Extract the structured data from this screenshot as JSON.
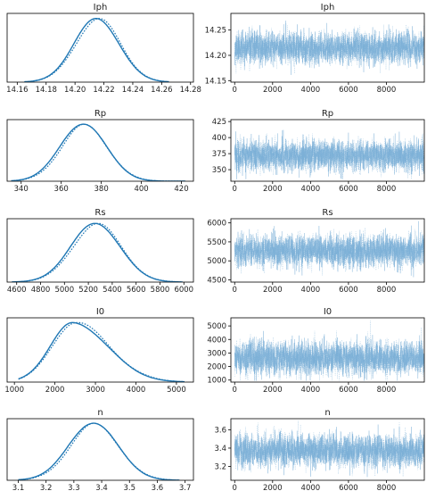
{
  "colors": {
    "kde": "#1f77b4",
    "trace": "#7bafd6",
    "axis": "#000000"
  },
  "chart_data": [
    {
      "type": "line",
      "title": "Iph",
      "xlim": [
        14.153,
        14.282
      ],
      "ylim": [
        0,
        1.08
      ],
      "xticks": [
        14.16,
        14.18,
        14.2,
        14.22,
        14.24,
        14.26,
        14.28
      ],
      "xtick_labels": [
        "14.16",
        "14.18",
        "14.20",
        "14.22",
        "14.24",
        "14.26",
        "14.28"
      ],
      "kde": {
        "mean": 14.215,
        "sd": 0.0155,
        "left": 14.165,
        "right": 14.265
      },
      "series": [
        {
          "x": [
            14.165,
            14.175,
            14.185,
            14.19,
            14.195,
            14.2,
            14.205,
            14.21,
            14.215,
            14.22,
            14.225,
            14.23,
            14.235,
            14.24,
            14.245,
            14.25,
            14.255,
            14.265
          ],
          "values": [
            0.006,
            0.04,
            0.1,
            0.2,
            0.38,
            0.6,
            0.82,
            0.96,
            1.0,
            0.96,
            0.82,
            0.6,
            0.4,
            0.22,
            0.1,
            0.04,
            0.015,
            0.003
          ]
        }
      ]
    },
    {
      "type": "line",
      "title": "Iph",
      "xlim": [
        -200,
        10000
      ],
      "ylim": [
        14.147,
        14.283
      ],
      "xticks": [
        0,
        2000,
        4000,
        6000,
        8000
      ],
      "xtick_labels": [
        "0",
        "2000",
        "4000",
        "6000",
        "8000"
      ],
      "yticks": [
        14.15,
        14.2,
        14.25
      ],
      "ytick_labels": [
        "14.15",
        "14.20",
        "14.25"
      ],
      "trace": {
        "n": 10000,
        "mean": 14.215,
        "sd": 0.0155,
        "min": 14.147,
        "max": 14.283,
        "seed": 11
      }
    },
    {
      "type": "line",
      "title": "Rp",
      "xlim": [
        333,
        426
      ],
      "ylim": [
        0,
        1.08
      ],
      "xticks": [
        340,
        360,
        380,
        400,
        420
      ],
      "xtick_labels": [
        "340",
        "360",
        "380",
        "400",
        "420"
      ],
      "kde": {
        "mean": 371,
        "sd": 11.5,
        "left": 335,
        "right": 422
      },
      "series": [
        {
          "x": [
            335,
            345,
            350,
            355,
            360,
            365,
            370,
            375,
            380,
            385,
            390,
            395,
            400,
            410,
            422
          ],
          "values": [
            0.01,
            0.08,
            0.2,
            0.42,
            0.72,
            0.94,
            1.0,
            0.9,
            0.7,
            0.46,
            0.28,
            0.14,
            0.07,
            0.015,
            0.002
          ]
        }
      ]
    },
    {
      "type": "line",
      "title": "Rp",
      "xlim": [
        -200,
        10000
      ],
      "ylim": [
        332,
        428
      ],
      "xticks": [
        0,
        2000,
        4000,
        6000,
        8000
      ],
      "xtick_labels": [
        "0",
        "2000",
        "4000",
        "6000",
        "8000"
      ],
      "yticks": [
        350,
        375,
        400,
        425
      ],
      "ytick_labels": [
        "350",
        "375",
        "400",
        "425"
      ],
      "trace": {
        "n": 10000,
        "mean": 372,
        "sd": 12,
        "min": 335,
        "max": 425,
        "seed": 22
      }
    },
    {
      "type": "line",
      "title": "Rs",
      "xlim": [
        4520,
        6080
      ],
      "ylim": [
        0,
        1.08
      ],
      "xticks": [
        4600,
        4800,
        5000,
        5200,
        5400,
        5600,
        5800,
        6000
      ],
      "xtick_labels": [
        "4600",
        "4800",
        "5000",
        "5200",
        "5400",
        "5600",
        "5800",
        "6000"
      ],
      "kde": {
        "mean": 5260,
        "sd": 205,
        "left": 4560,
        "right": 5990
      },
      "series": [
        {
          "x": [
            4560,
            4700,
            4800,
            4900,
            5000,
            5100,
            5200,
            5260,
            5300,
            5400,
            5500,
            5600,
            5700,
            5800,
            5990
          ],
          "values": [
            0.005,
            0.03,
            0.08,
            0.22,
            0.44,
            0.72,
            0.94,
            1.0,
            0.98,
            0.8,
            0.5,
            0.27,
            0.12,
            0.04,
            0.003
          ]
        }
      ]
    },
    {
      "type": "line",
      "title": "Rs",
      "xlim": [
        -200,
        10000
      ],
      "ylim": [
        4440,
        6110
      ],
      "xticks": [
        0,
        2000,
        4000,
        6000,
        8000
      ],
      "xtick_labels": [
        "0",
        "2000",
        "4000",
        "6000",
        "8000"
      ],
      "yticks": [
        4500,
        5000,
        5500,
        6000
      ],
      "ytick_labels": [
        "4500",
        "5000",
        "5500",
        "6000"
      ],
      "trace": {
        "n": 10000,
        "mean": 5265,
        "sd": 205,
        "min": 4520,
        "max": 6080,
        "seed": 33
      }
    },
    {
      "type": "line",
      "title": "I0",
      "xlim": [
        820,
        5420
      ],
      "ylim": [
        0,
        1.08
      ],
      "xticks": [
        1000,
        2000,
        3000,
        4000,
        5000
      ],
      "xtick_labels": [
        "1000",
        "2000",
        "3000",
        "4000",
        "5000"
      ],
      "kde": {
        "mean": 2450,
        "sd": 560,
        "left": 1100,
        "right": 5200,
        "skew": 1.5
      },
      "series": [
        {
          "x": [
            1100,
            1500,
            1800,
            2000,
            2200,
            2400,
            2600,
            2800,
            3000,
            3200,
            3500,
            3800,
            4200,
            5200
          ],
          "values": [
            0.03,
            0.25,
            0.6,
            0.85,
            0.98,
            1.0,
            0.93,
            0.78,
            0.6,
            0.43,
            0.25,
            0.12,
            0.04,
            0.003
          ]
        }
      ]
    },
    {
      "type": "line",
      "title": "I0",
      "xlim": [
        -200,
        10000
      ],
      "ylim": [
        850,
        5600
      ],
      "xticks": [
        0,
        2000,
        4000,
        6000,
        8000
      ],
      "xtick_labels": [
        "0",
        "2000",
        "4000",
        "6000",
        "8000"
      ],
      "yticks": [
        1000,
        2000,
        3000,
        4000,
        5000
      ],
      "ytick_labels": [
        "1000",
        "2000",
        "3000",
        "4000",
        "5000"
      ],
      "trace": {
        "n": 10000,
        "mean": 2600,
        "sd": 620,
        "min": 950,
        "max": 5400,
        "seed": 44
      }
    },
    {
      "type": "line",
      "title": "n",
      "xlim": [
        3.06,
        3.73
      ],
      "ylim": [
        0,
        1.08
      ],
      "xticks": [
        3.1,
        3.2,
        3.3,
        3.4,
        3.5,
        3.6,
        3.7
      ],
      "xtick_labels": [
        "3.1",
        "3.2",
        "3.3",
        "3.4",
        "3.5",
        "3.6",
        "3.7"
      ],
      "kde": {
        "mean": 3.37,
        "sd": 0.088,
        "left": 3.1,
        "right": 3.68
      },
      "series": [
        {
          "x": [
            3.1,
            3.15,
            3.2,
            3.25,
            3.3,
            3.35,
            3.38,
            3.4,
            3.45,
            3.5,
            3.55,
            3.6,
            3.68
          ],
          "values": [
            0.01,
            0.04,
            0.12,
            0.3,
            0.62,
            0.92,
            1.0,
            0.97,
            0.7,
            0.38,
            0.15,
            0.05,
            0.005
          ]
        }
      ]
    },
    {
      "type": "line",
      "title": "n",
      "xlim": [
        -200,
        10000
      ],
      "ylim": [
        3.05,
        3.72
      ],
      "xticks": [
        0,
        2000,
        4000,
        6000,
        8000
      ],
      "xtick_labels": [
        "0",
        "2000",
        "4000",
        "6000",
        "8000"
      ],
      "yticks": [
        3.2,
        3.4,
        3.6
      ],
      "ytick_labels": [
        "3.2",
        "3.4",
        "3.6"
      ],
      "trace": {
        "n": 10000,
        "mean": 3.37,
        "sd": 0.088,
        "min": 3.08,
        "max": 3.7,
        "seed": 55
      }
    }
  ]
}
